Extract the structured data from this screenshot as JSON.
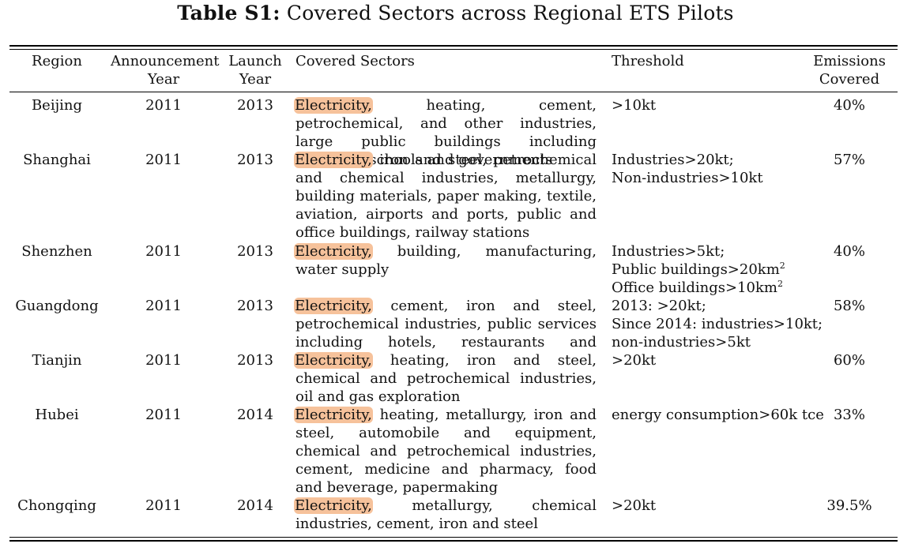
{
  "caption": {
    "label": "Table S1:",
    "title": "Covered Sectors across Regional ETS Pilots"
  },
  "headers": {
    "region": "Region",
    "announce_line1": "Announcement",
    "announce_line2": "Year",
    "launch_line1": "Launch",
    "launch_line2": "Year",
    "sectors": "Covered Sectors",
    "threshold": "Threshold",
    "emissions_line1": "Emissions",
    "emissions_line2": "Covered"
  },
  "highlight_color": "#f6c29b",
  "rows": [
    {
      "region": "Beijing",
      "announce": "2011",
      "launch": "2013",
      "highlight": "Electricity,",
      "sectors_rest": " heating, cement, petrochemical, and other industries, large public buildings including hospitals, schools and governments",
      "threshold": [
        ">10kt"
      ],
      "emissions": "40%"
    },
    {
      "region": "Shanghai",
      "announce": "2011",
      "launch": "2013",
      "highlight": "Electricity,",
      "sectors_rest": " iron and steel, petrochemical and chemical industries, metallurgy, building materials, paper making, textile, aviation, airports and ports, public and office buildings, railway stations",
      "threshold": [
        "Industries>20kt;",
        "Non-industries>10kt"
      ],
      "emissions": "57%"
    },
    {
      "region": "Shenzhen",
      "announce": "2011",
      "launch": "2013",
      "highlight": "Electricity,",
      "sectors_rest": " building, manufacturing, water supply",
      "threshold": [
        "Industries>5kt;",
        "Public buildings>20km",
        "Office buildings>10km"
      ],
      "threshold_sup": "2",
      "emissions": "40%"
    },
    {
      "region": "Guangdong",
      "announce": "2011",
      "launch": "2013",
      "highlight": "Electricity,",
      "sectors_rest": " cement, iron and steel, petrochemical industries, public services including hotels, restaurants and businesses",
      "threshold": [
        "2013: >20kt;",
        "Since 2014: industries>10kt;",
        "non-industries>5kt"
      ],
      "emissions": "58%"
    },
    {
      "region": "Tianjin",
      "announce": "2011",
      "launch": "2013",
      "highlight": "Electricity,",
      "sectors_rest": " heating, iron and steel, chemical and petrochemical industries, oil and gas exploration",
      "threshold": [
        ">20kt"
      ],
      "emissions": "60%"
    },
    {
      "region": "Hubei",
      "announce": "2011",
      "launch": "2014",
      "highlight": "Electricity,",
      "sectors_rest": " heating, metallurgy, iron and steel, automobile and equipment, chemical and petrochemical industries, cement, medicine and pharmacy, food and beverage, papermaking",
      "threshold": [
        "energy consumption>60k tce"
      ],
      "emissions": "33%"
    },
    {
      "region": "Chongqing",
      "announce": "2011",
      "launch": "2014",
      "highlight": "Electricity,",
      "sectors_rest": " metallurgy, chemical industries, cement, iron and steel",
      "threshold": [
        ">20kt"
      ],
      "emissions": "39.5%"
    }
  ]
}
